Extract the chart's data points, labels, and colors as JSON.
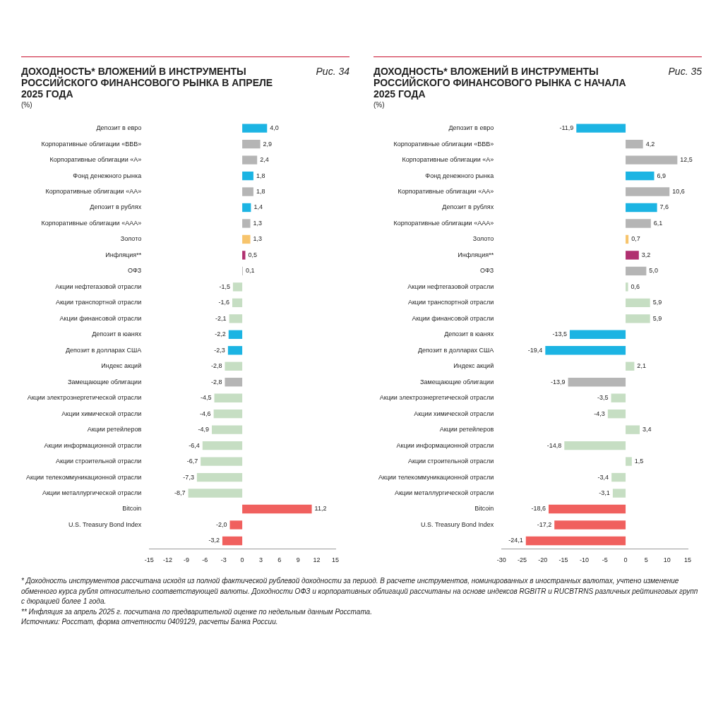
{
  "chart_data": [
    {
      "type": "bar",
      "orientation": "horizontal",
      "title": "ДОХОДНОСТЬ* ВЛОЖЕНИЙ В ИНСТРУМЕНТЫ РОССИЙСКОГО ФИНАНСОВОГО РЫНКА В АПРЕЛЕ 2025 ГОДА",
      "subtitle": "Рис. 34",
      "categories": [
        "Депозит в евро",
        "Корпоративные облигации «BBB»",
        "Корпоративные облигации «A»",
        "Фонд денежного рынка",
        "Корпоративные облигации «AA»",
        "Депозит в рублях",
        "Корпоративные облигации «AAA»",
        "Золото",
        "Инфляция**",
        "ОФЗ",
        "Акции нефтегазовой отрасли",
        "Акции транспортной отрасли",
        "Акции финансовой отрасли",
        "Депозит в юанях",
        "Депозит в долларах США",
        "Индекс акций",
        "Замещающие облигации",
        "Акции электроэнергетической отрасли",
        "Акции химической отрасли",
        "Акции ретейлеров",
        "Акции информационной отрасли",
        "Акции строительной отрасли",
        "Акции телекоммуникационной отрасли",
        "Акции металлургической отрасли",
        "Bitcoin",
        "U.S. Treasury Bond Index",
        null
      ],
      "values": [
        4.0,
        2.9,
        2.4,
        1.8,
        1.8,
        1.4,
        1.3,
        1.3,
        0.5,
        0.1,
        -1.5,
        -1.6,
        -2.1,
        -2.2,
        -2.3,
        -2.8,
        -2.8,
        -4.5,
        -4.6,
        -4.9,
        -6.4,
        -6.7,
        -7.3,
        -8.7,
        11.2,
        -2.0,
        -3.2
      ],
      "value_labels": [
        "4,0",
        "2,9",
        "2,4",
        "1,8",
        "1,8",
        "1,4",
        "1,3",
        "1,3",
        "0,5",
        "0,1",
        "-1,5",
        "-1,6",
        "-2,1",
        "-2,2",
        "-2,3",
        "-2,8",
        "-2,8",
        "-4,5",
        "-4,6",
        "-4,9",
        "-6,4",
        "-6,7",
        "-7,3",
        "-8,7",
        "11,2",
        "-2,0",
        "-3,2"
      ],
      "colors": [
        "#1cb4e3",
        "#b5b5b5",
        "#b5b5b5",
        "#1cb4e3",
        "#b5b5b5",
        "#1cb4e3",
        "#b5b5b5",
        "#f7c46c",
        "#b03070",
        "#b5b5b5",
        "#c6dec3",
        "#c6dec3",
        "#c6dec3",
        "#1cb4e3",
        "#1cb4e3",
        "#c6dec3",
        "#b5b5b5",
        "#c6dec3",
        "#c6dec3",
        "#c6dec3",
        "#c6dec3",
        "#c6dec3",
        "#c6dec3",
        "#c6dec3",
        "#f0605e",
        "#f0605e",
        "#f0605e"
      ],
      "xlim": [
        -15,
        15
      ],
      "xticks": [
        -15,
        -12,
        -9,
        -6,
        -3,
        0,
        3,
        6,
        9,
        12,
        15
      ],
      "grid": false,
      "legend": false,
      "annotations": [
        "(%)",
        "* Доходность инструментов рассчитана исходя из полной фактической рублевой доходности за период. В расчете инструментов, номинированных в иностранных валютах, учтено изменение обменного курса рубля относительно соответствующей валюты. Доходности ОФЗ и корпоративных облигаций рассчитаны на основе индексов RGBITR и RUCBTRNS различных рейтинговых групп с дюрацией более 1 года.",
        "** Инфляция за апрель 2025 г. посчитана по предварительной оценке по недельным данным Росстата.",
        "Источники: Росстат, форма отчетности 0409129, расчеты Банка России."
      ]
    },
    {
      "type": "bar",
      "orientation": "horizontal",
      "title": "ДОХОДНОСТЬ* ВЛОЖЕНИЙ В ИНСТРУМЕНТЫ РОССИЙСКОГО ФИНАНСОВОГО РЫНКА С НАЧАЛА 2025 ГОДА",
      "subtitle": "Рис. 35",
      "categories": [
        "Депозит в евро",
        "Корпоративные облигации «BBB»",
        "Корпоративные облигации «A»",
        "Фонд денежного рынка",
        "Корпоративные облигации «AA»",
        "Депозит в рублях",
        "Корпоративные облигации «AAA»",
        "Золото",
        "Инфляция**",
        "ОФЗ",
        "Акции нефтегазовой отрасли",
        "Акции транспортной отрасли",
        "Акции финансовой отрасли",
        "Депозит в юанях",
        "Депозит в долларах США",
        "Индекс акций",
        "Замещающие облигации",
        "Акции электроэнергетической отрасли",
        "Акции химической отрасли",
        "Акции ретейлеров",
        "Акции информационной отрасли",
        "Акции строительной отрасли",
        "Акции телекоммуникационной отрасли",
        "Акции металлургической отрасли",
        "Bitcoin",
        "U.S. Treasury Bond Index",
        null
      ],
      "values": [
        -11.9,
        4.2,
        12.5,
        6.9,
        10.6,
        7.6,
        6.1,
        0.7,
        3.2,
        5.0,
        0.6,
        5.9,
        5.9,
        -13.5,
        -19.4,
        2.1,
        -13.9,
        -3.5,
        -4.3,
        3.4,
        -14.8,
        1.5,
        -3.4,
        -3.1,
        -18.6,
        -17.2,
        -24.1
      ],
      "value_labels": [
        "-11,9",
        "4,2",
        "12,5",
        "6,9",
        "10,6",
        "7,6",
        "6,1",
        "0,7",
        "3,2",
        "5,0",
        "0,6",
        "5,9",
        "5,9",
        "-13,5",
        "-19,4",
        "2,1",
        "-13,9",
        "-3,5",
        "-4,3",
        "3,4",
        "-14,8",
        "1,5",
        "-3,4",
        "-3,1",
        "-18,6",
        "-17,2",
        "-24,1"
      ],
      "colors": [
        "#1cb4e3",
        "#b5b5b5",
        "#b5b5b5",
        "#1cb4e3",
        "#b5b5b5",
        "#1cb4e3",
        "#b5b5b5",
        "#f7c46c",
        "#b03070",
        "#b5b5b5",
        "#c6dec3",
        "#c6dec3",
        "#c6dec3",
        "#1cb4e3",
        "#1cb4e3",
        "#c6dec3",
        "#b5b5b5",
        "#c6dec3",
        "#c6dec3",
        "#c6dec3",
        "#c6dec3",
        "#c6dec3",
        "#c6dec3",
        "#c6dec3",
        "#f0605e",
        "#f0605e",
        "#f0605e"
      ],
      "xlim": [
        -30,
        15
      ],
      "xticks": [
        -30,
        -25,
        -20,
        -15,
        -10,
        -5,
        0,
        5,
        10,
        15
      ],
      "grid": false,
      "legend": false,
      "annotations": [
        "(%)"
      ]
    }
  ]
}
